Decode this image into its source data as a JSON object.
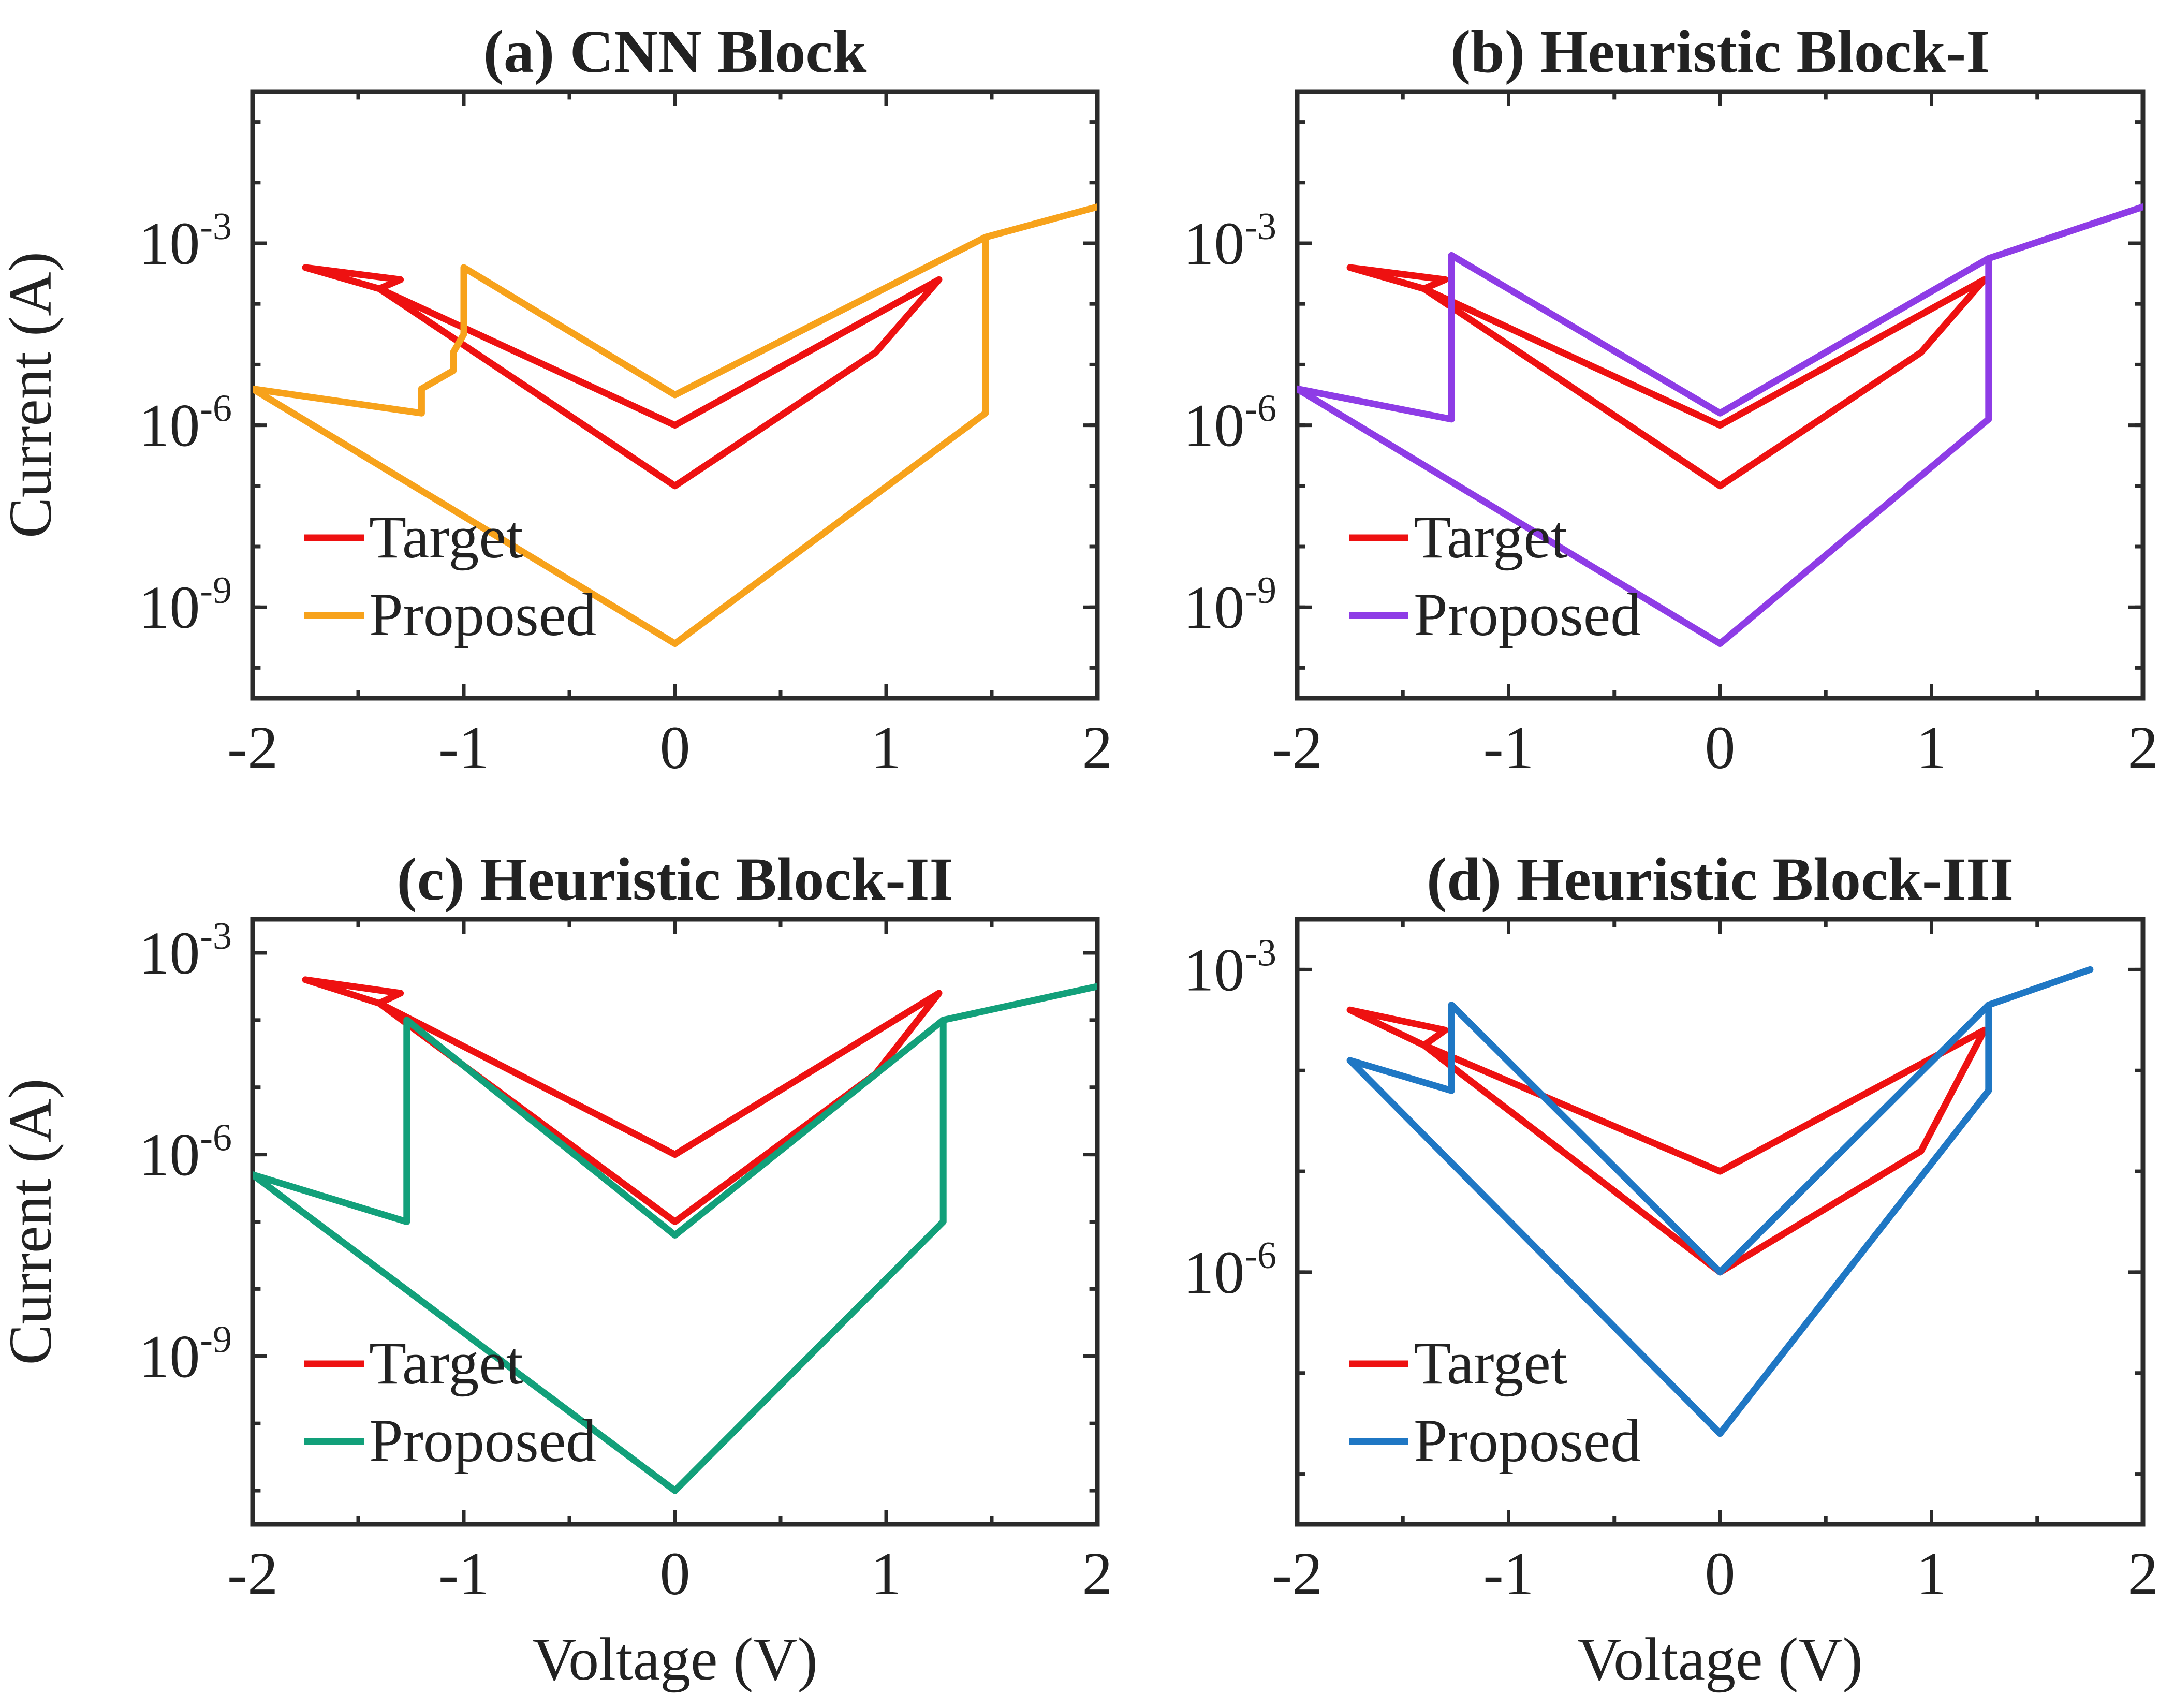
{
  "chart_data": [
    {
      "type": "line",
      "title": "(a) CNN Block",
      "xlabel": "",
      "ylabel": "Current (A)",
      "xlim": [
        -2,
        2
      ],
      "ylim_log10": [
        -10.5,
        -0.5
      ],
      "y_scale": "log",
      "x_ticks": [
        "-2",
        "-1",
        "0",
        "1",
        "2"
      ],
      "y_ticks": [
        {
          "base": "10",
          "exp": "-3",
          "value": -3
        },
        {
          "base": "10",
          "exp": "-6",
          "value": -6
        },
        {
          "base": "10",
          "exp": "-9",
          "value": -9
        }
      ],
      "legend": {
        "position": "bottom-left",
        "entries": [
          "Target",
          "Proposed"
        ]
      },
      "series": [
        {
          "name": "Target",
          "color": "#ee1111",
          "x": [
            -1.75,
            -1.4,
            0,
            0.95,
            1.25,
            0,
            -1.4,
            -1.3,
            -1.75
          ],
          "log10_y": [
            -3.4,
            -3.75,
            -7.0,
            -4.8,
            -3.6,
            -6.0,
            -3.75,
            -3.6,
            -3.4
          ]
        },
        {
          "name": "Proposed",
          "color": "#f7a21b",
          "x": [
            2.0,
            1.47,
            1.47,
            0,
            -2.0,
            -1.2,
            -1.2,
            -1.05,
            -1.05,
            -1.0,
            -1.0,
            0,
            1.47
          ],
          "log10_y": [
            -2.4,
            -2.9,
            -5.8,
            -9.6,
            -5.4,
            -5.8,
            -5.4,
            -5.1,
            -4.8,
            -4.5,
            -3.4,
            -5.5,
            -2.9
          ]
        }
      ]
    },
    {
      "type": "line",
      "title": "(b) Heuristic Block-I",
      "xlabel": "",
      "ylabel": "",
      "xlim": [
        -2,
        2
      ],
      "ylim_log10": [
        -10.5,
        -0.5
      ],
      "y_scale": "log",
      "x_ticks": [
        "-2",
        "-1",
        "0",
        "1",
        "2"
      ],
      "y_ticks": [
        {
          "base": "10",
          "exp": "-3",
          "value": -3
        },
        {
          "base": "10",
          "exp": "-6",
          "value": -6
        },
        {
          "base": "10",
          "exp": "-9",
          "value": -9
        }
      ],
      "legend": {
        "position": "bottom-left",
        "entries": [
          "Target",
          "Proposed"
        ]
      },
      "series": [
        {
          "name": "Target",
          "color": "#ee1111",
          "x": [
            -1.75,
            -1.4,
            0,
            0.95,
            1.25,
            0,
            -1.4,
            -1.3,
            -1.75
          ],
          "log10_y": [
            -3.4,
            -3.75,
            -7.0,
            -4.8,
            -3.6,
            -6.0,
            -3.75,
            -3.6,
            -3.4
          ]
        },
        {
          "name": "Proposed",
          "color": "#8e3ce6",
          "x": [
            2.0,
            1.27,
            1.27,
            0,
            -2.0,
            -1.27,
            -1.27,
            0,
            1.27
          ],
          "log10_y": [
            -2.4,
            -3.25,
            -5.9,
            -9.6,
            -5.4,
            -5.9,
            -3.2,
            -5.8,
            -3.25
          ]
        }
      ]
    },
    {
      "type": "line",
      "title": "(c) Heuristic Block-II",
      "xlabel": "Voltage (V)",
      "ylabel": "Current (A)",
      "xlim": [
        -2,
        2
      ],
      "ylim_log10": [
        -11.5,
        -2.5
      ],
      "y_scale": "log",
      "x_ticks": [
        "-2",
        "-1",
        "0",
        "1",
        "2"
      ],
      "y_ticks": [
        {
          "base": "10",
          "exp": "-3",
          "value": -3
        },
        {
          "base": "10",
          "exp": "-6",
          "value": -6
        },
        {
          "base": "10",
          "exp": "-9",
          "value": -9
        }
      ],
      "legend": {
        "position": "bottom-left",
        "entries": [
          "Target",
          "Proposed"
        ]
      },
      "series": [
        {
          "name": "Target",
          "color": "#ee1111",
          "x": [
            -1.75,
            -1.4,
            0,
            0.95,
            1.25,
            0,
            -1.4,
            -1.3,
            -1.75
          ],
          "log10_y": [
            -3.4,
            -3.75,
            -7.0,
            -4.8,
            -3.6,
            -6.0,
            -3.75,
            -3.6,
            -3.4
          ]
        },
        {
          "name": "Proposed",
          "color": "#12a07a",
          "x": [
            2.0,
            1.27,
            1.27,
            0,
            -2.0,
            -1.27,
            -1.27,
            0,
            1.27
          ],
          "log10_y": [
            -3.5,
            -4.0,
            -7.0,
            -11.0,
            -6.3,
            -7.0,
            -4.0,
            -7.2,
            -4.0
          ]
        }
      ]
    },
    {
      "type": "line",
      "title": "(d) Heuristic Block-III",
      "xlabel": "Voltage (V)",
      "ylabel": "",
      "xlim": [
        -2,
        2
      ],
      "ylim_log10": [
        -8.5,
        -2.5
      ],
      "y_scale": "log",
      "x_ticks": [
        "-2",
        "-1",
        "0",
        "1",
        "2"
      ],
      "y_ticks": [
        {
          "base": "10",
          "exp": "-3",
          "value": -3
        },
        {
          "base": "10",
          "exp": "-6",
          "value": -6
        }
      ],
      "legend": {
        "position": "bottom-left",
        "entries": [
          "Target",
          "Proposed"
        ]
      },
      "series": [
        {
          "name": "Target",
          "color": "#ee1111",
          "x": [
            -1.75,
            -1.4,
            0,
            0.95,
            1.25,
            0,
            -1.4,
            -1.3,
            -1.75
          ],
          "log10_y": [
            -3.4,
            -3.75,
            -6.0,
            -4.8,
            -3.6,
            -5.0,
            -3.75,
            -3.6,
            -3.4
          ]
        },
        {
          "name": "Proposed",
          "color": "#1f77c4",
          "x": [
            1.75,
            1.27,
            1.27,
            0,
            -1.75,
            -1.27,
            -1.27,
            0,
            1.27
          ],
          "log10_y": [
            -3.0,
            -3.35,
            -4.2,
            -7.6,
            -3.9,
            -4.2,
            -3.35,
            -6.0,
            -3.35
          ]
        }
      ]
    }
  ]
}
